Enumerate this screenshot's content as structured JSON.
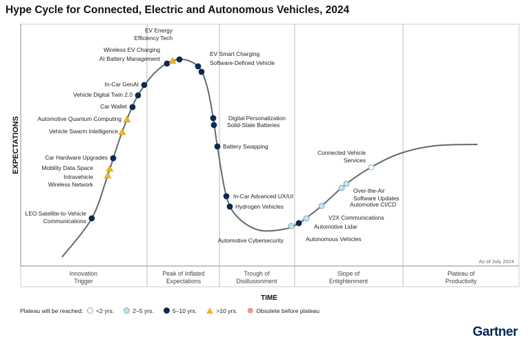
{
  "title": "Hype Cycle for Connected, Electric and Autonomous Vehicles, 2024",
  "y_axis_label": "EXPECTATIONS",
  "x_axis_label": "TIME",
  "as_of": "As of July 2024",
  "phases": [
    [
      "Innovation",
      "Trigger"
    ],
    [
      "Peak of Inflated",
      "Expectations"
    ],
    [
      "Trough of",
      "Disillusionment"
    ],
    [
      "Slope of",
      "Enlightenment"
    ],
    [
      "Plateau of",
      "Productivity"
    ]
  ],
  "legend": {
    "prefix": "Plateau will be reached:",
    "items": [
      "<2 yrs.",
      "2–5 yrs.",
      "5–10 yrs.",
      ">10 yrs.",
      "Obsolete before plateau"
    ]
  },
  "colors": {
    "lt2": "#ffffff",
    "y2to5": "#bfe3f2",
    "y5to10": "#0b2a50",
    "gt10": "#f0b429",
    "obsolete": "#e0302a",
    "curve": "#5f6b6b"
  },
  "technologies": [
    {
      "name": [
        "LEO Satellite-to-Vehicle",
        "Communications"
      ],
      "cat": "y5to10"
    },
    {
      "name": [
        "Intravehicle",
        "Wireless Network"
      ],
      "cat": "gt10"
    },
    {
      "name": [
        "Mobility Data Space"
      ],
      "cat": "gt10"
    },
    {
      "name": [
        "Car Hardware Upgrades"
      ],
      "cat": "y5to10"
    },
    {
      "name": [
        "Vehicle Swarm Intelligence"
      ],
      "cat": "gt10"
    },
    {
      "name": [
        "Automotive Quantum Computing"
      ],
      "cat": "gt10"
    },
    {
      "name": [
        "Car Wallet"
      ],
      "cat": "y5to10"
    },
    {
      "name": [
        "Vehicle Digital Twin 2.0"
      ],
      "cat": "y5to10"
    },
    {
      "name": [
        "In-Car GenAI"
      ],
      "cat": "y5to10"
    },
    {
      "name": [
        "AI Battery Management"
      ],
      "cat": "y5to10"
    },
    {
      "name": [
        "Wireless EV Charging"
      ],
      "cat": "gt10"
    },
    {
      "name": [
        "EV Energy",
        "Efficiency Tech"
      ],
      "cat": "y5to10"
    },
    {
      "name": [
        "EV Smart Charging"
      ],
      "cat": "y5to10"
    },
    {
      "name": [
        "Software-Defined Vehicle"
      ],
      "cat": "y5to10"
    },
    {
      "name": [
        "Digital Personalization"
      ],
      "cat": "y5to10"
    },
    {
      "name": [
        "Solid-State Batteries"
      ],
      "cat": "y5to10"
    },
    {
      "name": [
        "Battery Swapping"
      ],
      "cat": "y5to10"
    },
    {
      "name": [
        "In-Car Advanced UX/UI"
      ],
      "cat": "y5to10"
    },
    {
      "name": [
        "Hydrogen Vehicles"
      ],
      "cat": "y5to10"
    },
    {
      "name": [
        "Automotive Cybersecurity"
      ],
      "cat": "y2to5"
    },
    {
      "name": [
        "Autonomous Vehicles"
      ],
      "cat": "y5to10"
    },
    {
      "name": [
        "Automotive Lidar"
      ],
      "cat": "y2to5"
    },
    {
      "name": [
        "V2X Communications"
      ],
      "cat": "y2to5"
    },
    {
      "name": [
        "Automotive CI/CD"
      ],
      "cat": "y2to5"
    },
    {
      "name": [
        "Over-the-Air",
        "Software Updates"
      ],
      "cat": "y2to5"
    },
    {
      "name": [
        "Connected Vehicle",
        "Services"
      ],
      "cat": "lt2"
    }
  ],
  "logo": "Gartner"
}
